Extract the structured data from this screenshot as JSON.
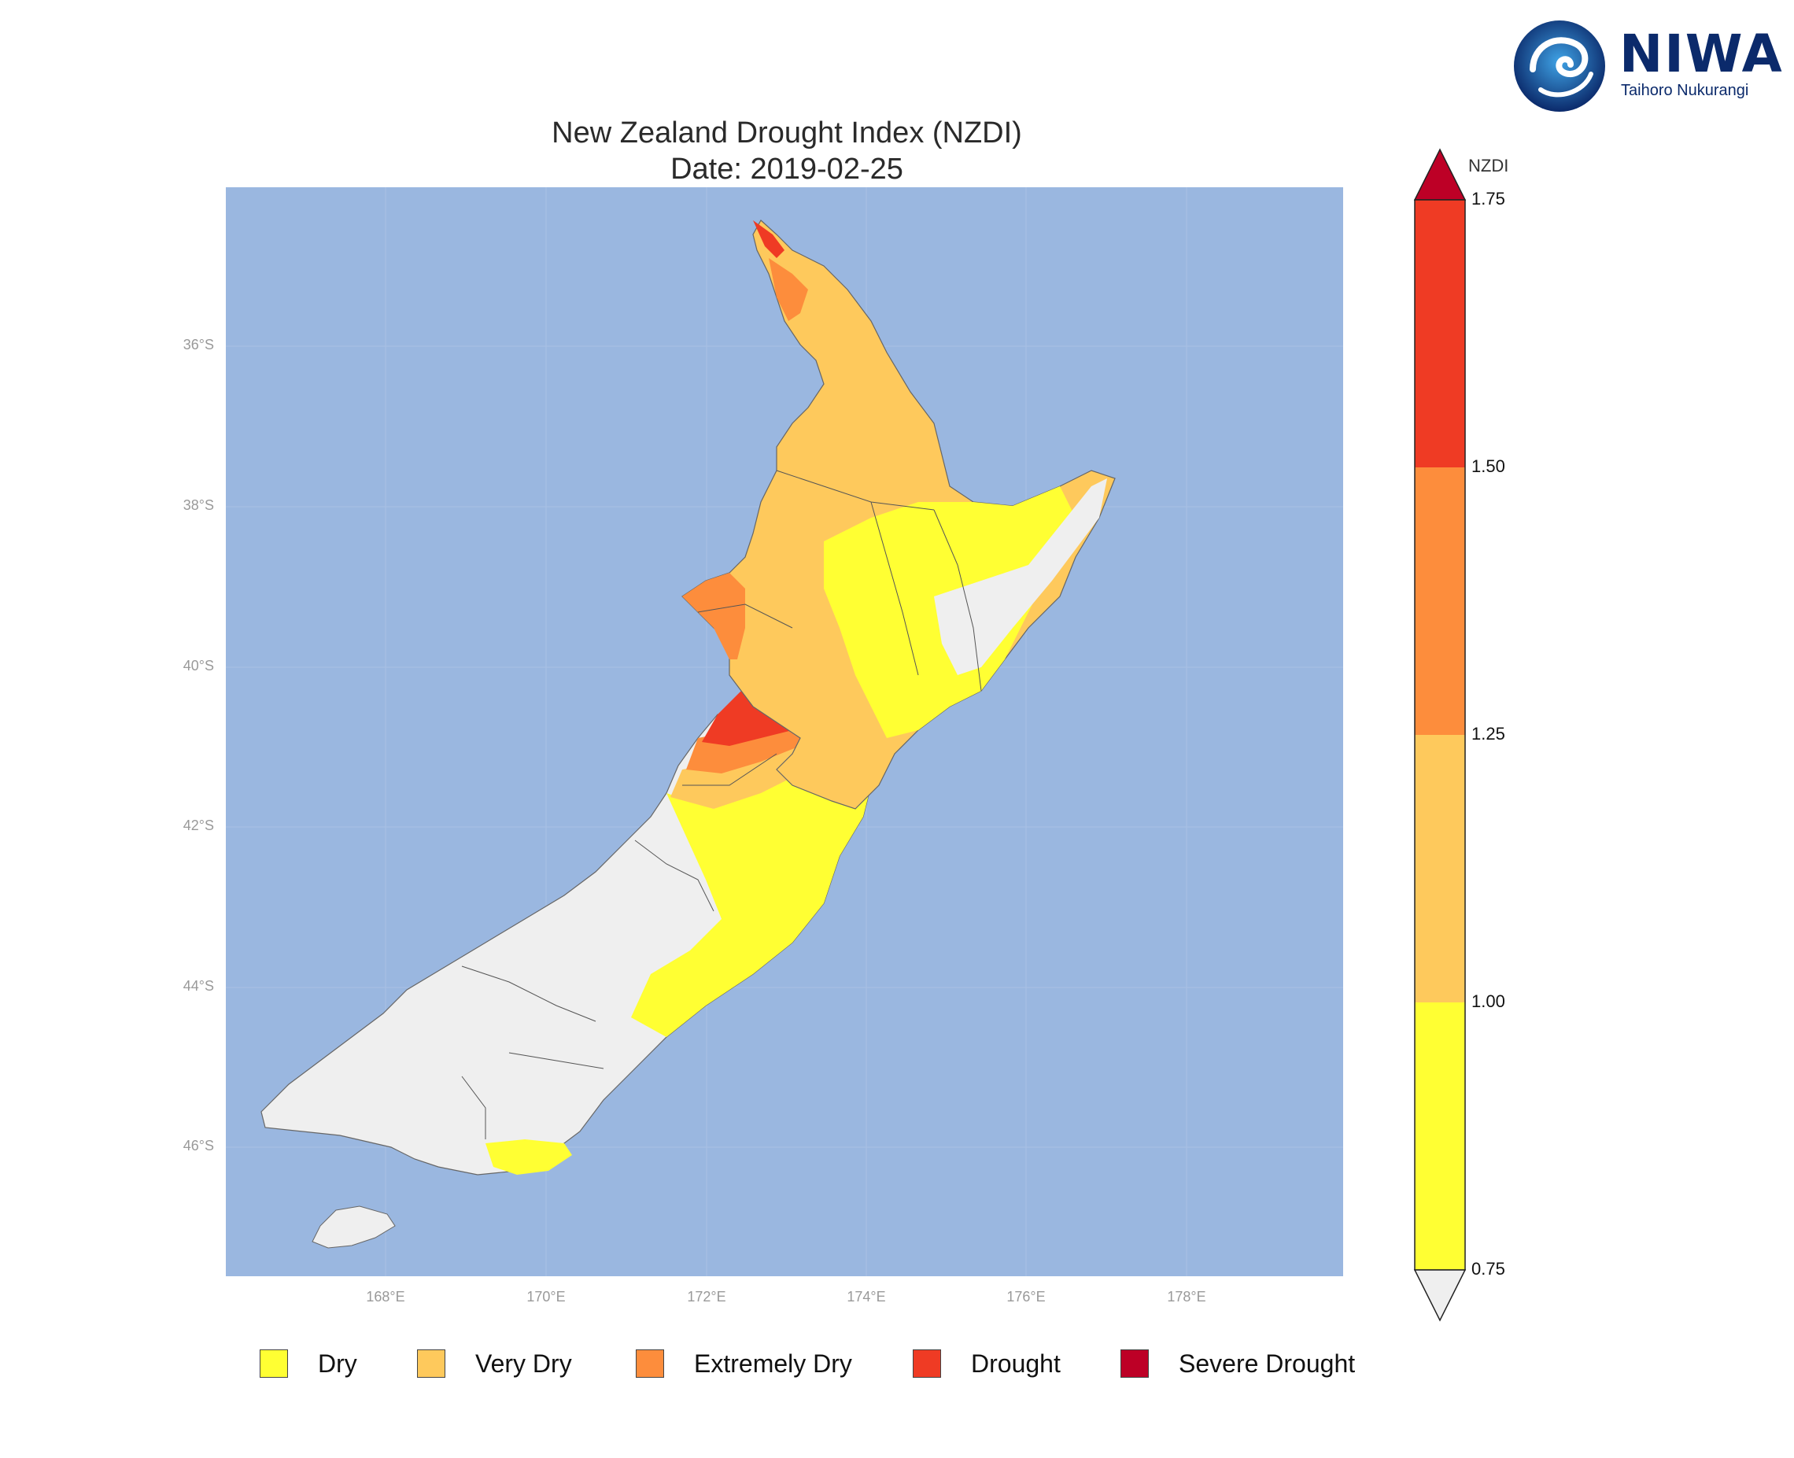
{
  "title": "New Zealand Drought Index (NZDI)",
  "subtitle": "Date: 2019-02-25",
  "logo": {
    "name": "NIWA",
    "tagline": "Taihoro Nukurangi",
    "icon": "niwa-swirl-icon"
  },
  "map": {
    "ocean_color": "#9ab7e0",
    "land_base_color": "#efefef",
    "latitude_labels": [
      "36°S",
      "38°S",
      "40°S",
      "42°S",
      "44°S",
      "46°S"
    ],
    "longitude_labels": [
      "168°E",
      "170°E",
      "172°E",
      "174°E",
      "176°E",
      "178°E"
    ]
  },
  "colorbar": {
    "unit_label": "NZDI",
    "ticks": [
      "1.75",
      "1.50",
      "1.25",
      "1.00",
      "0.75"
    ],
    "bands": [
      {
        "from": 1.5,
        "to": 1.75,
        "color": "#ef3b24"
      },
      {
        "from": 1.25,
        "to": 1.5,
        "color": "#fd8d3c"
      },
      {
        "from": 1.0,
        "to": 1.25,
        "color": "#fec95c"
      },
      {
        "from": 0.75,
        "to": 1.0,
        "color": "#ffff33"
      }
    ],
    "over_color": "#bd0026",
    "under_color": "#efefef"
  },
  "legend": [
    {
      "label": "Dry",
      "color": "#ffff33"
    },
    {
      "label": "Very Dry",
      "color": "#fec95c"
    },
    {
      "label": "Extremely Dry",
      "color": "#fd8d3c"
    },
    {
      "label": "Drought",
      "color": "#ef3b24"
    },
    {
      "label": "Severe Drought",
      "color": "#bd0026"
    }
  ]
}
